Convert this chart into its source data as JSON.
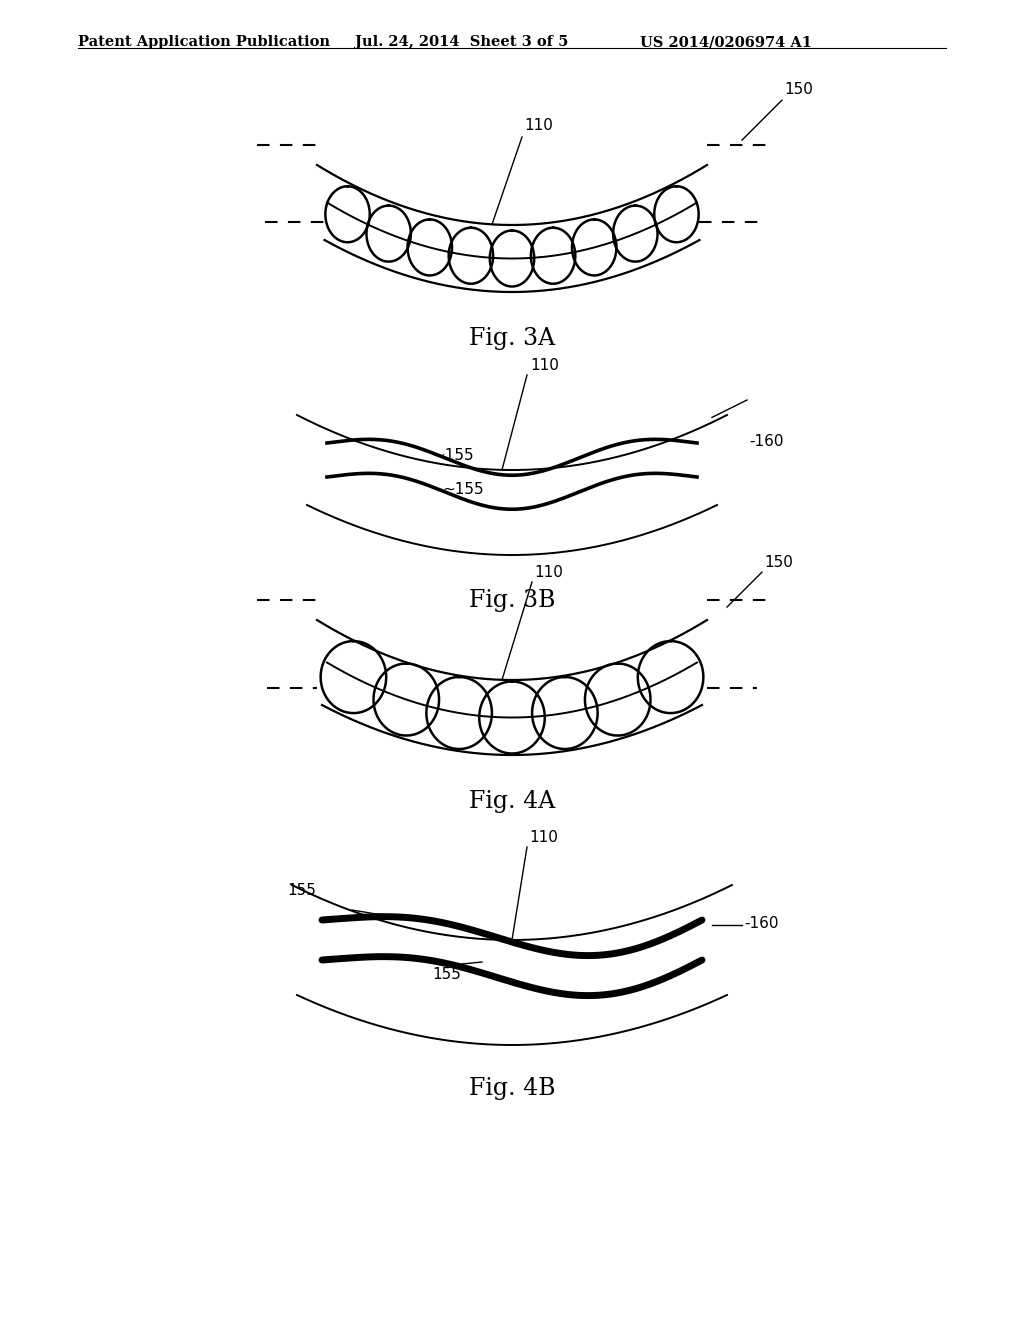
{
  "bg_color": "#ffffff",
  "line_color": "#000000",
  "header_left": "Patent Application Publication",
  "header_mid": "Jul. 24, 2014  Sheet 3 of 5",
  "header_right": "US 2014/0206974 A1",
  "fig3a_label": "Fig. 3A",
  "fig3b_label": "Fig. 3B",
  "fig4a_label": "Fig. 4A",
  "fig4b_label": "Fig. 4B",
  "label_110": "110",
  "label_150": "150",
  "label_155": "155",
  "label_160": "160"
}
